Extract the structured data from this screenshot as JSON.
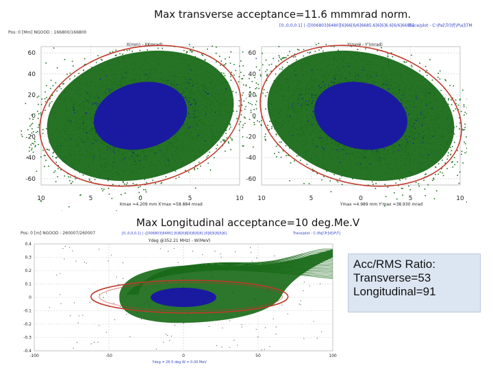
{
  "titles": {
    "transverse": "Max transverse acceptance=11.6 mmmrad norm.",
    "longitudinal": "Max Longitudinal acceptance=10 deg.Me.V"
  },
  "ratio_box": {
    "line1": "Acc/RMS Ratio:",
    "line2": "Transverse=53",
    "line3": "Longitudinal=91",
    "background": "#dce6f2"
  },
  "colors": {
    "halo": "#1a6b1a",
    "core": "#1a1aa0",
    "ellipse": "#c0392b",
    "grid": "#c8c8c8"
  },
  "chart_data": [
    {
      "type": "scatter",
      "title": "",
      "header_left": "Pos: 0 [Mm]   NGOOD : 166800/166800",
      "header_mid": "[0.,0,0,0.1] | -[[006803]6480][6]66[6/6]6685.6]6[6]6.6[6/6]6685]",
      "xlabel": "X(mm) - X'(mrad)",
      "footer": "Xmax =4.209 mm  X'max =58.884 mrad",
      "x_ticks": [
        "10",
        "5",
        "0",
        "5",
        "10"
      ],
      "y_ticks": [
        "60",
        "40",
        "20",
        "0",
        "-20",
        "-40",
        "-60"
      ],
      "xlim": [
        -10,
        10
      ],
      "ylim": [
        -66,
        66
      ],
      "grid": true,
      "series": [
        {
          "values": {
            "center": [
              0,
              0
            ],
            "semi_major_axis": 73.3,
            "semi_minor_axis": 9.1,
            "angle_deg": -76.5
          }
        },
        {
          "values": {
            "center": [
              0,
              0
            ],
            "semi_major_axis": 35,
            "semi_minor_axis": 3.4,
            "angle_deg": -76.5
          }
        },
        {
          "values": {
            "center": [
              0,
              0
            ],
            "semi_major_axis": 67.7,
            "semi_minor_axis": 7.1,
            "angle_deg": -76.5
          }
        }
      ]
    },
    {
      "type": "scatter",
      "title": "",
      "header_right": "Trace/plot - C:\\Pa[\\Tr]\\f[\\P\\a]\\TM",
      "xlabel": "Y(mm) - Y'(mrad)",
      "footer": "Ymax =4.989 mm  Y'max =38.930 mrad",
      "x_ticks": [
        "10",
        "5",
        "0",
        "5",
        "10"
      ],
      "y_ticks": [
        "60",
        "40",
        "20",
        "0",
        "-20",
        "-40",
        "-60"
      ],
      "xlim": [
        -10,
        10
      ],
      "ylim": [
        -66,
        66
      ],
      "grid": true,
      "series": [
        {
          "values": {
            "center": [
              0,
              0
            ],
            "semi_major_axis": 73.3,
            "semi_minor_axis": 9.1,
            "angle_deg": 76.5
          }
        },
        {
          "values": {
            "center": [
              0,
              0
            ],
            "semi_major_axis": 35,
            "semi_minor_axis": 3.4,
            "angle_deg": 76.5
          }
        },
        {
          "values": {
            "center": [
              0,
              0
            ],
            "semi_major_axis": 67.7,
            "semi_minor_axis": 7.1,
            "angle_deg": 76.5
          }
        }
      ]
    },
    {
      "type": "scatter",
      "title": "",
      "header_left": "Pos: 0 [m]   NGOOD : 260007/260007",
      "header_mid": "[0.,0,0,0.1] | -[[006803]6480] [6]6[6]6[6]6[6]6] [6]6[6]6[6]6]",
      "header_right": "Trace/plot - C:\\Pa[\\Tr]\\f[\\P\\T]",
      "xlabel": "Ydeg @352.21 MHz) - W(MeV)",
      "footer": "Ydeg = 26.5 deg  W = 0.00 MeV",
      "x_ticks": [
        "-100",
        "-50",
        "0",
        "50",
        "100"
      ],
      "y_ticks": [
        "0.4",
        "0.3",
        "0.2",
        "0.1",
        "0",
        "-0.1",
        "-0.2",
        "-0.3",
        "-0.4"
      ],
      "xlim": [
        -100,
        100
      ],
      "ylim": [
        -0.4,
        0.4
      ],
      "grid": true,
      "series": [
        {
          "values": {
            "halo": "fishtail",
            "x_extent": [
              -43,
              100
            ],
            "y_extent": [
              -0.2,
              0.35
            ]
          }
        },
        {
          "values": {
            "center": [
              0,
              0
            ],
            "semi_major_axis": 22,
            "semi_minor_axis": 0.03
          }
        },
        {
          "values": {
            "center": [
              4,
              0.005
            ],
            "semi_major_axis": 66,
            "semi_minor_axis": 0.122
          }
        }
      ]
    }
  ]
}
